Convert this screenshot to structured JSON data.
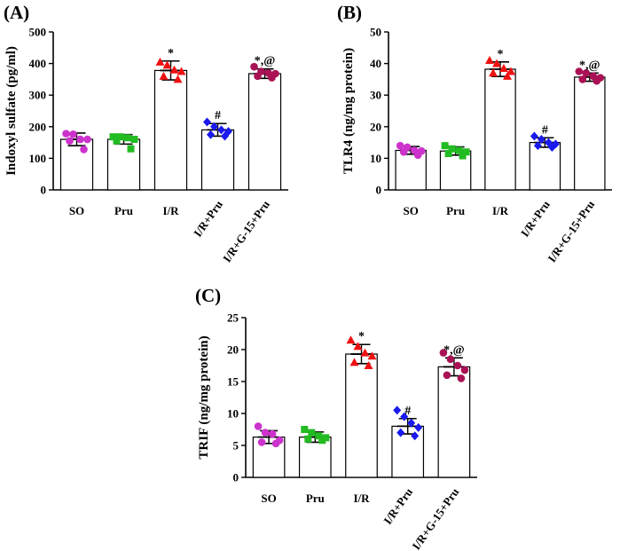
{
  "chart_data": [
    {
      "type": "bar",
      "panel": "(A)",
      "ylabel": "Indoxyl sulfate (pg/ml)",
      "ylim": [
        0,
        500
      ],
      "yticks": [
        0,
        100,
        200,
        300,
        400,
        500
      ],
      "categories": [
        "SO",
        "Pru",
        "I/R",
        "I/R+Pru",
        "I/R+G-15+Pru"
      ],
      "values": [
        160,
        160,
        378,
        190,
        368
      ],
      "errors": [
        20,
        15,
        30,
        20,
        15
      ],
      "significance": [
        "",
        "",
        "*",
        "#",
        "*,@"
      ],
      "points": [
        [
          178,
          176,
          160,
          160,
          155,
          128
        ],
        [
          168,
          168,
          165,
          160,
          155,
          130
        ],
        [
          405,
          395,
          380,
          375,
          360,
          350
        ],
        [
          215,
          200,
          190,
          185,
          175,
          170
        ],
        [
          390,
          375,
          370,
          368,
          360,
          355
        ]
      ],
      "colors": [
        "#cc33cc",
        "#22bb22",
        "#ee1111",
        "#1a1aee",
        "#aa1155"
      ],
      "markers": [
        "circle",
        "square",
        "triangle",
        "diamond",
        "circle"
      ]
    },
    {
      "type": "bar",
      "panel": "(B)",
      "ylabel": "TLR4 (ng/mg protein)",
      "ylim": [
        0,
        50
      ],
      "yticks": [
        0,
        10,
        20,
        30,
        40,
        50
      ],
      "categories": [
        "SO",
        "Pru",
        "I/R",
        "I/R+Pru",
        "I/R+G-15+Pru"
      ],
      "values": [
        12.5,
        12.3,
        38.2,
        15,
        35.7
      ],
      "errors": [
        1.2,
        1.3,
        2.3,
        1.5,
        1.3
      ],
      "significance": [
        "",
        "",
        "*",
        "#",
        "*,@"
      ],
      "points": [
        [
          14,
          13.5,
          12.5,
          12.3,
          12,
          11
        ],
        [
          14,
          13,
          12.5,
          12,
          11.5,
          10.8
        ],
        [
          41,
          40,
          38.5,
          37.5,
          37,
          36
        ],
        [
          17,
          16,
          15,
          14.5,
          14,
          13.5
        ],
        [
          37.5,
          37,
          36,
          35.5,
          35,
          34.5
        ]
      ],
      "colors": [
        "#cc33cc",
        "#22bb22",
        "#ee1111",
        "#1a1aee",
        "#aa1155"
      ],
      "markers": [
        "circle",
        "square",
        "triangle",
        "diamond",
        "circle"
      ]
    },
    {
      "type": "bar",
      "panel": "(C)",
      "ylabel": "TRIF (ng/mg protein)",
      "ylim": [
        0,
        25
      ],
      "yticks": [
        0,
        5,
        10,
        15,
        20,
        25
      ],
      "categories": [
        "SO",
        "Pru",
        "I/R",
        "I/R+Pru",
        "I/R+G-15+Pru"
      ],
      "values": [
        6.3,
        6.3,
        19.3,
        8.0,
        17.3
      ],
      "errors": [
        1.0,
        0.8,
        1.5,
        1.2,
        1.4
      ],
      "significance": [
        "",
        "",
        "*",
        "#",
        "*,@"
      ],
      "points": [
        [
          8,
          7,
          6.8,
          5.8,
          5.5,
          5.3
        ],
        [
          7.5,
          7,
          6.5,
          6.2,
          6,
          5.8
        ],
        [
          21.5,
          20.5,
          19.5,
          19,
          18,
          17.5
        ],
        [
          10.5,
          9.5,
          8.5,
          7.8,
          7,
          6.5
        ],
        [
          19.5,
          18.5,
          17.5,
          16.8,
          16,
          15.5
        ]
      ],
      "colors": [
        "#cc33cc",
        "#22bb22",
        "#ee1111",
        "#1a1aee",
        "#aa1155"
      ],
      "markers": [
        "circle",
        "square",
        "triangle",
        "diamond",
        "circle"
      ]
    }
  ]
}
